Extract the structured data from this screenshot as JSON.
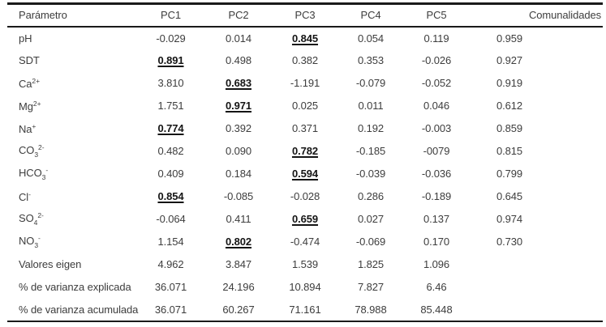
{
  "colors": {
    "border": "#1a1a1a",
    "text": "#3d3d3d",
    "highlight_text": "#141414",
    "background": "#ffffff"
  },
  "header": {
    "columns": [
      "Parámetro",
      "PC1",
      "PC2",
      "PC3",
      "PC4",
      "PC5",
      "Comunalidades"
    ]
  },
  "rows": [
    {
      "label": [
        {
          "t": "pH"
        }
      ],
      "values": [
        "-0.029",
        "0.014",
        "0.845",
        "0.054",
        "0.119",
        "0.959"
      ],
      "highlight": 2
    },
    {
      "label": [
        {
          "t": "SDT"
        }
      ],
      "values": [
        "0.891",
        "0.498",
        "0.382",
        "0.353",
        "-0.026",
        "0.927"
      ],
      "highlight": 0
    },
    {
      "label": [
        {
          "t": "Ca"
        },
        {
          "t": "2+",
          "s": "sup"
        }
      ],
      "values": [
        "3.810",
        "0.683",
        "-1.191",
        "-0.079",
        "-0.052",
        "0.919"
      ],
      "highlight": 1
    },
    {
      "label": [
        {
          "t": "Mg"
        },
        {
          "t": "2+",
          "s": "sup"
        }
      ],
      "values": [
        "1.751",
        "0.971",
        "0.025",
        "0.011",
        "0.046",
        "0.612"
      ],
      "highlight": 1
    },
    {
      "label": [
        {
          "t": "Na"
        },
        {
          "t": "+",
          "s": "sup"
        }
      ],
      "values": [
        "0.774",
        "0.392",
        "0.371",
        "0.192",
        "-0.003",
        "0.859"
      ],
      "highlight": 0
    },
    {
      "label": [
        {
          "t": "CO"
        },
        {
          "t": "3",
          "s": "sub"
        },
        {
          "t": "2-",
          "s": "sup"
        }
      ],
      "values": [
        "0.482",
        "0.090",
        "0.782",
        "-0.185",
        "-0079",
        "0.815"
      ],
      "highlight": 2
    },
    {
      "label": [
        {
          "t": "HCO"
        },
        {
          "t": "3",
          "s": "sub"
        },
        {
          "t": "-",
          "s": "sup"
        }
      ],
      "values": [
        "0.409",
        "0.184",
        "0.594",
        "-0.039",
        "-0.036",
        "0.799"
      ],
      "highlight": 2
    },
    {
      "label": [
        {
          "t": "Cl"
        },
        {
          "t": "-",
          "s": "sup"
        }
      ],
      "values": [
        "0.854",
        "-0.085",
        "-0.028",
        "0.286",
        "-0.189",
        "0.645"
      ],
      "highlight": 0
    },
    {
      "label": [
        {
          "t": "SO"
        },
        {
          "t": "4",
          "s": "sub"
        },
        {
          "t": "2-",
          "s": "sup"
        }
      ],
      "values": [
        "-0.064",
        "0.411",
        "0.659",
        "0.027",
        "0.137",
        "0.974"
      ],
      "highlight": 2
    },
    {
      "label": [
        {
          "t": "NO"
        },
        {
          "t": "3",
          "s": "sub"
        },
        {
          "t": "-",
          "s": "sup"
        }
      ],
      "values": [
        "1.154",
        "0.802",
        "-0.474",
        "-0.069",
        "0.170",
        "0.730"
      ],
      "highlight": 1
    },
    {
      "label": [
        {
          "t": "Valores eigen"
        }
      ],
      "values": [
        "4.962",
        "3.847",
        "1.539",
        "1.825",
        "1.096",
        ""
      ],
      "highlight": -1
    },
    {
      "label": [
        {
          "t": "% de varianza explicada"
        }
      ],
      "values": [
        "36.071",
        "24.196",
        "10.894",
        "7.827",
        "6.46",
        ""
      ],
      "highlight": -1
    },
    {
      "label": [
        {
          "t": "% de varianza acumulada"
        }
      ],
      "values": [
        "36.071",
        "60.267",
        "71.161",
        "78.988",
        "85.448",
        ""
      ],
      "highlight": -1
    }
  ]
}
